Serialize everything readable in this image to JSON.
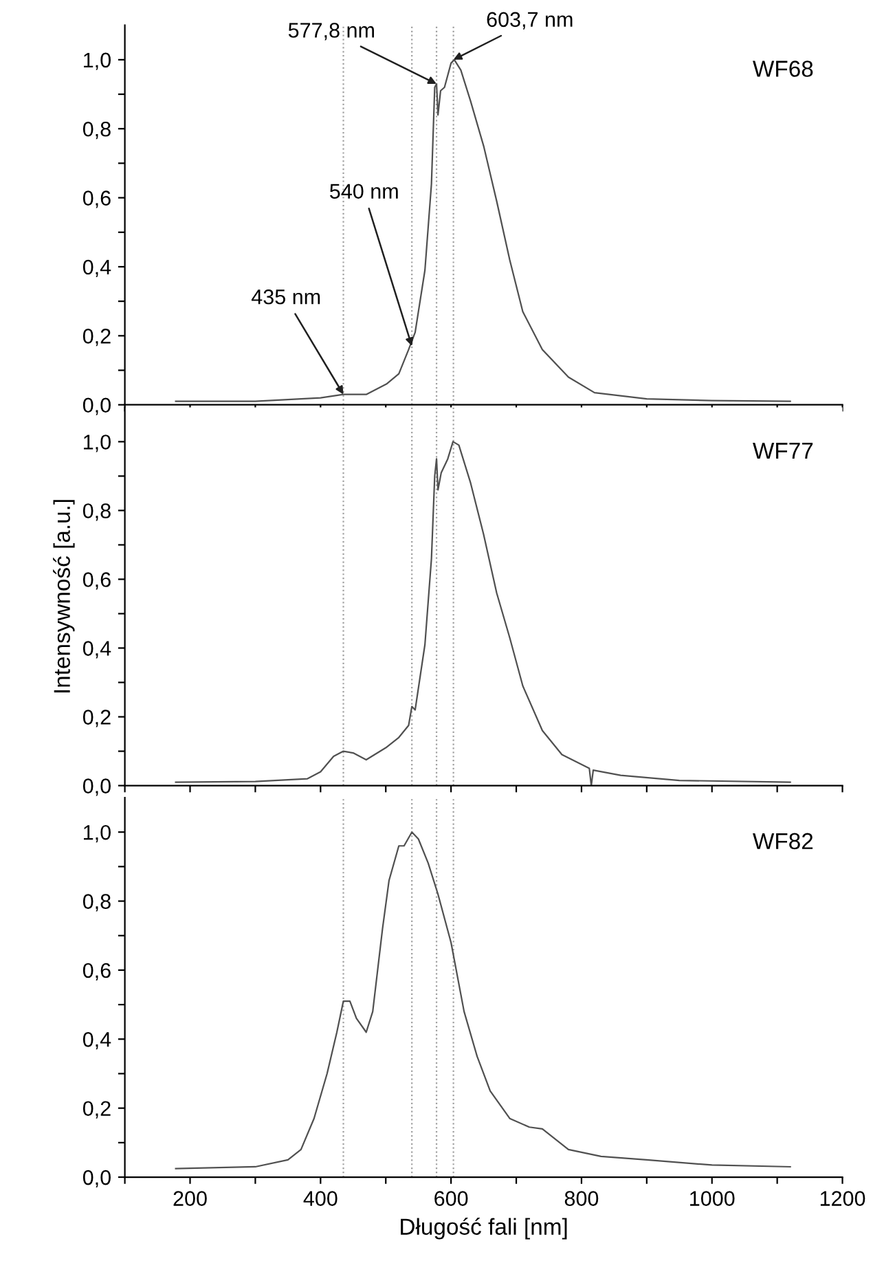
{
  "chart_data": [
    {
      "type": "line",
      "xlim": [
        100,
        1200
      ],
      "ylim": [
        0,
        1.1
      ],
      "xticks": [
        {
          "value": 100,
          "label": null
        },
        {
          "value": 200,
          "label": null
        },
        {
          "value": 300,
          "label": null
        },
        {
          "value": 400,
          "label": null
        },
        {
          "value": 500,
          "label": null
        },
        {
          "value": 600,
          "label": null
        },
        {
          "value": 700,
          "label": null
        },
        {
          "value": 800,
          "label": null
        },
        {
          "value": 900,
          "label": null
        },
        {
          "value": 1000,
          "label": null
        },
        {
          "value": 1100,
          "label": null
        },
        {
          "value": 1200,
          "label": null
        }
      ],
      "yticks": [
        {
          "value": 0,
          "label": "0,0"
        },
        {
          "value": 0.1,
          "label": null
        },
        {
          "value": 0.2,
          "label": "0,2"
        },
        {
          "value": 0.3,
          "label": null
        },
        {
          "value": 0.4,
          "label": "0,4"
        },
        {
          "value": 0.5,
          "label": null
        },
        {
          "value": 0.6,
          "label": "0,6"
        },
        {
          "value": 0.7,
          "label": null
        },
        {
          "value": 0.8,
          "label": "0,8"
        },
        {
          "value": 0.9,
          "label": null
        },
        {
          "value": 1.0,
          "label": "1,0"
        }
      ],
      "tick_labels": "y",
      "grid": false,
      "legend": false,
      "marker": "none",
      "line_style": "solid",
      "series": [
        {
          "color": "#505050",
          "x": [
            178,
            300,
            400,
            435,
            470,
            501,
            520,
            535,
            545,
            560,
            570,
            575,
            577.8,
            580,
            584,
            590,
            600,
            605,
            615,
            630,
            650,
            670,
            690,
            710,
            740,
            780,
            820,
            900,
            1000,
            1120
          ],
          "values": [
            0.01,
            0.01,
            0.02,
            0.03,
            0.03,
            0.06,
            0.09,
            0.16,
            0.21,
            0.39,
            0.64,
            0.92,
            0.93,
            0.84,
            0.91,
            0.92,
            0.99,
            1.0,
            0.97,
            0.88,
            0.75,
            0.59,
            0.42,
            0.27,
            0.16,
            0.08,
            0.035,
            0.017,
            0.012,
            0.01
          ]
        }
      ],
      "ref_lines": [
        {
          "axis": "x",
          "value": 435,
          "color": "#a0a0a0",
          "line_style": "dotted"
        },
        {
          "axis": "x",
          "value": 540,
          "color": "#a0a0a0",
          "line_style": "dotted"
        },
        {
          "axis": "x",
          "value": 577.8,
          "color": "#a0a0a0",
          "line_style": "dotted"
        },
        {
          "axis": "x",
          "value": 603.7,
          "color": "#a0a0a0",
          "line_style": "dotted"
        }
      ],
      "annotations": [
        {
          "text": "435 nm",
          "x": 435,
          "y": 0.03
        },
        {
          "text": "540 nm",
          "x": 540,
          "y": 0.17
        },
        {
          "text": "577,8 nm",
          "x": 577.8,
          "y": 0.93
        },
        {
          "text": "603,7 nm",
          "x": 603.7,
          "y": 1.0
        },
        "WF68"
      ]
    },
    {
      "type": "line",
      "xlim": [
        100,
        1200
      ],
      "ylim": [
        0,
        1.1
      ],
      "xticks": [
        {
          "value": 100,
          "label": null
        },
        {
          "value": 200,
          "label": null
        },
        {
          "value": 300,
          "label": null
        },
        {
          "value": 400,
          "label": null
        },
        {
          "value": 500,
          "label": null
        },
        {
          "value": 600,
          "label": null
        },
        {
          "value": 700,
          "label": null
        },
        {
          "value": 800,
          "label": null
        },
        {
          "value": 900,
          "label": null
        },
        {
          "value": 1000,
          "label": null
        },
        {
          "value": 1100,
          "label": null
        },
        {
          "value": 1200,
          "label": null
        }
      ],
      "yticks": [
        {
          "value": 0,
          "label": "0,0"
        },
        {
          "value": 0.1,
          "label": null
        },
        {
          "value": 0.2,
          "label": "0,2"
        },
        {
          "value": 0.3,
          "label": null
        },
        {
          "value": 0.4,
          "label": "0,4"
        },
        {
          "value": 0.5,
          "label": null
        },
        {
          "value": 0.6,
          "label": "0,6"
        },
        {
          "value": 0.7,
          "label": null
        },
        {
          "value": 0.8,
          "label": "0,8"
        },
        {
          "value": 0.9,
          "label": null
        },
        {
          "value": 1.0,
          "label": "1,0"
        }
      ],
      "tick_labels": "y",
      "grid": false,
      "legend": false,
      "marker": "none",
      "line_style": "solid",
      "ylabel": "Intensywność [a.u.]",
      "series": [
        {
          "color": "#505050",
          "x": [
            178,
            300,
            380,
            400,
            420,
            435,
            450,
            470,
            500,
            520,
            535,
            540,
            545,
            560,
            570,
            575,
            577.8,
            580,
            585,
            595,
            603,
            612,
            630,
            650,
            670,
            690,
            710,
            740,
            770,
            812,
            815,
            818,
            860,
            950,
            1120
          ],
          "values": [
            0.01,
            0.012,
            0.02,
            0.04,
            0.085,
            0.1,
            0.095,
            0.075,
            0.11,
            0.14,
            0.175,
            0.23,
            0.22,
            0.41,
            0.66,
            0.9,
            0.95,
            0.86,
            0.91,
            0.95,
            1.0,
            0.99,
            0.88,
            0.73,
            0.56,
            0.43,
            0.29,
            0.16,
            0.09,
            0.05,
            0.0,
            0.045,
            0.03,
            0.015,
            0.01
          ]
        }
      ],
      "ref_lines": [
        {
          "axis": "x",
          "value": 435,
          "color": "#a0a0a0",
          "line_style": "dotted"
        },
        {
          "axis": "x",
          "value": 540,
          "color": "#a0a0a0",
          "line_style": "dotted"
        },
        {
          "axis": "x",
          "value": 577.8,
          "color": "#a0a0a0",
          "line_style": "dotted"
        },
        {
          "axis": "x",
          "value": 603.7,
          "color": "#a0a0a0",
          "line_style": "dotted"
        }
      ],
      "annotations": [
        "WF77"
      ]
    },
    {
      "type": "line",
      "xlim": [
        100,
        1200
      ],
      "ylim": [
        0,
        1.1
      ],
      "xticks": [
        {
          "value": 100,
          "label": null
        },
        200,
        {
          "value": 300,
          "label": null
        },
        400,
        {
          "value": 500,
          "label": null
        },
        600,
        {
          "value": 700,
          "label": null
        },
        800,
        {
          "value": 900,
          "label": null
        },
        1000,
        {
          "value": 1100,
          "label": null
        },
        1200
      ],
      "yticks": [
        {
          "value": 0,
          "label": "0,0"
        },
        {
          "value": 0.1,
          "label": null
        },
        {
          "value": 0.2,
          "label": "0,2"
        },
        {
          "value": 0.3,
          "label": null
        },
        {
          "value": 0.4,
          "label": "0,4"
        },
        {
          "value": 0.5,
          "label": null
        },
        {
          "value": 0.6,
          "label": "0,6"
        },
        {
          "value": 0.7,
          "label": null
        },
        {
          "value": 0.8,
          "label": "0,8"
        },
        {
          "value": 0.9,
          "label": null
        },
        {
          "value": 1.0,
          "label": "1,0"
        }
      ],
      "grid": false,
      "legend": false,
      "marker": "none",
      "line_style": "solid",
      "xlabel": "Długość fali [nm]",
      "series": [
        {
          "color": "#505050",
          "x": [
            178,
            300,
            350,
            370,
            390,
            410,
            425,
            435,
            445,
            455,
            470,
            480,
            495,
            505,
            520,
            528,
            540,
            550,
            565,
            580,
            600,
            620,
            640,
            660,
            690,
            720,
            740,
            780,
            830,
            900,
            1000,
            1120
          ],
          "values": [
            0.025,
            0.03,
            0.05,
            0.08,
            0.17,
            0.3,
            0.42,
            0.51,
            0.51,
            0.46,
            0.42,
            0.48,
            0.72,
            0.86,
            0.96,
            0.96,
            1.0,
            0.98,
            0.91,
            0.82,
            0.68,
            0.48,
            0.35,
            0.25,
            0.17,
            0.145,
            0.14,
            0.08,
            0.06,
            0.05,
            0.035,
            0.03
          ]
        }
      ],
      "ref_lines": [
        {
          "axis": "x",
          "value": 435,
          "color": "#a0a0a0",
          "line_style": "dotted"
        },
        {
          "axis": "x",
          "value": 540,
          "color": "#a0a0a0",
          "line_style": "dotted"
        },
        {
          "axis": "x",
          "value": 577.8,
          "color": "#a0a0a0",
          "line_style": "dotted"
        },
        {
          "axis": "x",
          "value": 603.7,
          "color": "#a0a0a0",
          "line_style": "dotted"
        }
      ],
      "annotations": [
        "WF82"
      ]
    }
  ]
}
